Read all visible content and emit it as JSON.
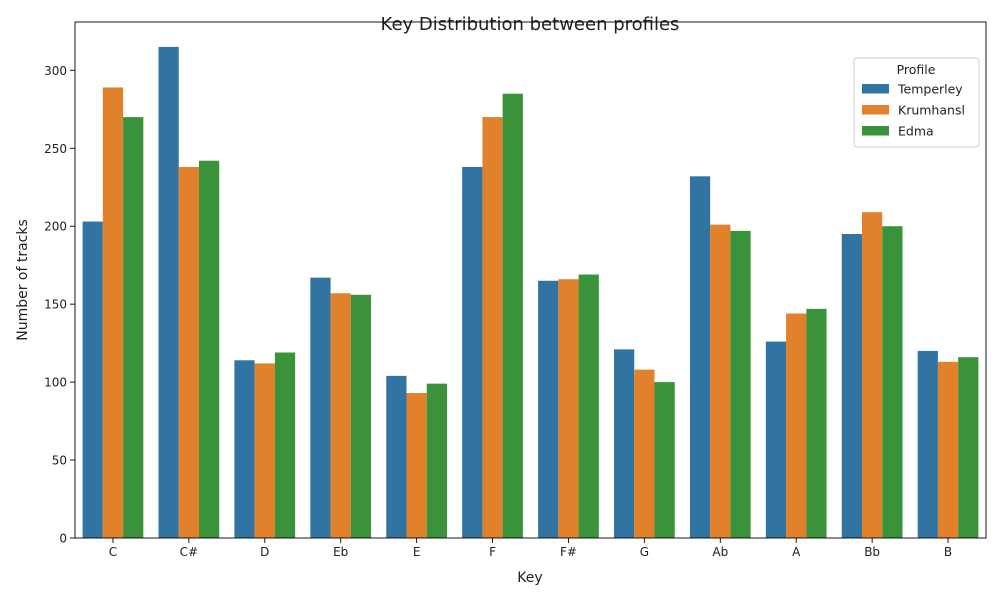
{
  "chart_data": {
    "type": "bar",
    "title": "Key Distribution between profiles",
    "xlabel": "Key",
    "ylabel": "Number of tracks",
    "categories": [
      "C",
      "C#",
      "D",
      "Eb",
      "E",
      "F",
      "F#",
      "G",
      "Ab",
      "A",
      "Bb",
      "B"
    ],
    "ylim": [
      0,
      331
    ],
    "yticks": [
      0,
      50,
      100,
      150,
      200,
      250,
      300
    ],
    "grid": false,
    "legend": {
      "title": "Profile",
      "placement": "top-right"
    },
    "series": [
      {
        "name": "Temperley",
        "color": "#3274a1",
        "values": [
          203,
          315,
          114,
          167,
          104,
          238,
          165,
          121,
          232,
          126,
          195,
          120
        ]
      },
      {
        "name": "Krumhansl",
        "color": "#e1812c",
        "values": [
          289,
          238,
          112,
          157,
          93,
          270,
          166,
          108,
          201,
          144,
          209,
          113
        ]
      },
      {
        "name": "Edma",
        "color": "#3a923a",
        "values": [
          270,
          242,
          119,
          156,
          99,
          285,
          169,
          100,
          197,
          147,
          200,
          116
        ]
      }
    ]
  }
}
